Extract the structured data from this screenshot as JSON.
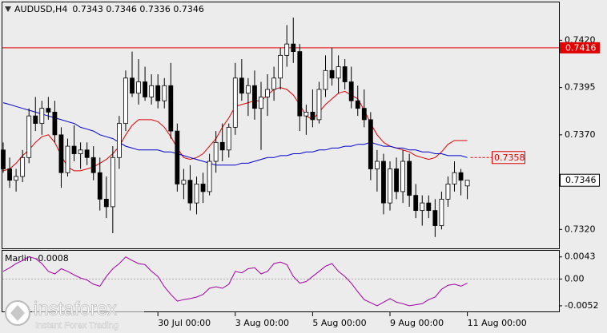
{
  "header": {
    "symbol": "AUDUSD,H4",
    "ohlc": [
      0.7343,
      0.7346,
      0.7336,
      0.7346
    ]
  },
  "watermark": {
    "brand": "instaforex",
    "tagline": "Instant Forex Trading"
  },
  "chart_data": [
    {
      "type": "candlestick",
      "categories": [
        null,
        null,
        null,
        null,
        null,
        null,
        null,
        null,
        null,
        null,
        null,
        null,
        null,
        null,
        null,
        null,
        null,
        null,
        null,
        null,
        null,
        null,
        null,
        null,
        "30 Jul 00:00",
        null,
        null,
        null,
        null,
        null,
        null,
        null,
        null,
        null,
        null,
        null,
        "3 Aug 00:00",
        null,
        null,
        null,
        null,
        null,
        null,
        null,
        null,
        null,
        null,
        null,
        "5 Aug 00:00",
        null,
        null,
        null,
        null,
        null,
        null,
        null,
        null,
        null,
        null,
        null,
        "9 Aug 00:00",
        null,
        null,
        null,
        null,
        null,
        null,
        null,
        null,
        null,
        null,
        null,
        "11 Aug 00:00"
      ],
      "open": [
        0.7362,
        0.7352,
        0.7346,
        0.7348,
        0.7358,
        0.738,
        0.7376,
        0.7384,
        0.7382,
        0.737,
        0.735,
        0.7364,
        0.736,
        0.7362,
        0.7358,
        0.735,
        0.7336,
        0.7332,
        0.7358,
        0.7376,
        0.74,
        0.7392,
        0.7398,
        0.739,
        0.7396,
        0.7388,
        0.7396,
        0.7372,
        0.7344,
        0.7346,
        0.7334,
        0.7344,
        0.734,
        0.7356,
        0.7366,
        0.7362,
        0.7374,
        0.74,
        0.7392,
        0.7396,
        0.7384,
        0.739,
        0.7394,
        0.74,
        0.7412,
        0.7418,
        0.7414,
        0.738,
        0.7382,
        0.7378,
        0.7394,
        0.7404,
        0.74,
        0.7406,
        0.7398,
        0.7388,
        0.7384,
        0.7378,
        0.7352,
        0.7356,
        0.7334,
        0.7352,
        0.734,
        0.7356,
        0.7338,
        0.733,
        0.7334,
        0.733,
        0.7322,
        0.7336,
        0.7344,
        0.735,
        0.7343
      ],
      "high": [
        0.7366,
        0.7358,
        0.7352,
        0.7362,
        0.7384,
        0.739,
        0.7388,
        0.739,
        0.7388,
        0.7374,
        0.7368,
        0.7375,
        0.7366,
        0.7366,
        0.7364,
        0.7358,
        0.7348,
        0.7364,
        0.738,
        0.7404,
        0.7414,
        0.741,
        0.7406,
        0.7402,
        0.7402,
        0.74,
        0.7408,
        0.7376,
        0.7352,
        0.7354,
        0.7348,
        0.735,
        0.736,
        0.7372,
        0.7376,
        0.7376,
        0.7408,
        0.741,
        0.74,
        0.7404,
        0.7398,
        0.7402,
        0.7406,
        0.7416,
        0.7428,
        0.7432,
        0.7418,
        0.7386,
        0.7394,
        0.7398,
        0.7412,
        0.7416,
        0.7412,
        0.741,
        0.7406,
        0.7396,
        0.7394,
        0.7382,
        0.7362,
        0.736,
        0.7356,
        0.7358,
        0.7362,
        0.736,
        0.7344,
        0.7338,
        0.7338,
        0.7336,
        0.734,
        0.7348,
        0.7356,
        0.7352,
        0.7346
      ],
      "low": [
        0.735,
        0.7342,
        0.734,
        0.7345,
        0.7355,
        0.7372,
        0.737,
        0.7378,
        0.7366,
        0.7342,
        0.7348,
        0.7356,
        0.7352,
        0.7354,
        0.7346,
        0.733,
        0.7326,
        0.7318,
        0.7352,
        0.7372,
        0.739,
        0.7386,
        0.7388,
        0.7386,
        0.7384,
        0.7384,
        0.7368,
        0.734,
        0.7336,
        0.733,
        0.7328,
        0.7334,
        0.7338,
        0.735,
        0.7356,
        0.7358,
        0.737,
        0.7388,
        0.738,
        0.7378,
        0.7362,
        0.738,
        0.7388,
        0.7394,
        0.7406,
        0.7408,
        0.7372,
        0.737,
        0.7374,
        0.7376,
        0.739,
        0.7396,
        0.7392,
        0.7394,
        0.7384,
        0.738,
        0.7374,
        0.7346,
        0.734,
        0.7328,
        0.733,
        0.7336,
        0.7334,
        0.7332,
        0.7326,
        0.7322,
        0.7326,
        0.7316,
        0.732,
        0.7332,
        0.734,
        0.7338,
        0.7336
      ],
      "close": [
        0.7352,
        0.7346,
        0.7348,
        0.7358,
        0.738,
        0.7376,
        0.7384,
        0.7382,
        0.737,
        0.735,
        0.7364,
        0.736,
        0.7362,
        0.7358,
        0.735,
        0.7336,
        0.7332,
        0.7358,
        0.7376,
        0.74,
        0.7392,
        0.7398,
        0.739,
        0.7396,
        0.7388,
        0.7396,
        0.7372,
        0.7344,
        0.7346,
        0.7334,
        0.7344,
        0.734,
        0.7356,
        0.7366,
        0.7362,
        0.7374,
        0.74,
        0.7392,
        0.7396,
        0.7384,
        0.739,
        0.7394,
        0.74,
        0.7412,
        0.7418,
        0.7414,
        0.738,
        0.7382,
        0.7378,
        0.7394,
        0.7404,
        0.74,
        0.7406,
        0.7398,
        0.7388,
        0.7384,
        0.7378,
        0.7352,
        0.7356,
        0.7334,
        0.7352,
        0.734,
        0.7356,
        0.7338,
        0.733,
        0.7334,
        0.733,
        0.7322,
        0.7336,
        0.7344,
        0.735,
        0.7346,
        0.7346
      ],
      "overlays": [
        {
          "color": "#e00000",
          "values": [
            0.7351,
            0.7352,
            0.7355,
            0.7359,
            0.7362,
            0.7366,
            0.7369,
            0.737,
            0.7366,
            0.7359,
            0.7353,
            0.7351,
            0.7351,
            0.7352,
            0.7353,
            0.7355,
            0.7357,
            0.736,
            0.7364,
            0.737,
            0.7375,
            0.7378,
            0.7378,
            0.7378,
            0.7377,
            0.7374,
            0.7369,
            0.7363,
            0.7358,
            0.7357,
            0.7358,
            0.736,
            0.7364,
            0.7368,
            0.7374,
            0.7379,
            0.7385,
            0.7386,
            0.7387,
            0.7388,
            0.7388,
            0.7391,
            0.7394,
            0.7395,
            0.7394,
            0.7391,
            0.7386,
            0.738,
            0.7378,
            0.7382,
            0.7386,
            0.7389,
            0.7392,
            0.7393,
            0.7391,
            0.7389,
            0.7383,
            0.7376,
            0.737,
            0.7366,
            0.7364,
            0.7363,
            0.7362,
            0.7361,
            0.7359,
            0.7358,
            0.7357,
            0.7358,
            0.7361,
            0.7365,
            0.7367,
            0.7367,
            0.7367
          ]
        },
        {
          "color": "#0000cc",
          "values": [
            0.7387,
            0.7386,
            0.7385,
            0.7384,
            0.7383,
            0.7382,
            0.7381,
            0.738,
            0.7379,
            0.7378,
            0.7377,
            0.7376,
            0.7374,
            0.7373,
            0.7372,
            0.737,
            0.7369,
            0.7368,
            0.7366,
            0.7364,
            0.7363,
            0.7362,
            0.7362,
            0.7362,
            0.7362,
            0.7361,
            0.7361,
            0.736,
            0.7359,
            0.7358,
            0.7357,
            0.7356,
            0.7355,
            0.7354,
            0.7354,
            0.7354,
            0.7354,
            0.7355,
            0.7355,
            0.7356,
            0.7357,
            0.7358,
            0.7358,
            0.7359,
            0.7359,
            0.736,
            0.736,
            0.7361,
            0.7361,
            0.7362,
            0.7362,
            0.7363,
            0.7363,
            0.7364,
            0.7364,
            0.7365,
            0.7365,
            0.7366,
            0.7365,
            0.7364,
            0.7364,
            0.7363,
            0.7363,
            0.7362,
            0.7362,
            0.7361,
            0.7361,
            0.736,
            0.736,
            0.7359,
            0.7359,
            0.7359,
            0.7358
          ]
        }
      ],
      "level": {
        "value": 0.7416,
        "color": "#e00000"
      },
      "last_price": 0.7346,
      "ma_label": 0.7358,
      "ylim": [
        0.731,
        0.744
      ],
      "yticks": [
        {
          "value": 0.742,
          "label": "0.7420"
        },
        0.7395,
        {
          "value": 0.737,
          "label": "0.7370"
        },
        {
          "value": 0.732,
          "label": "0.7320"
        }
      ]
    },
    {
      "type": "line",
      "name": "Marlin",
      "value": -0.0008,
      "color": "#a000a0",
      "values": [
        0.0015,
        0.0022,
        0.003,
        0.0036,
        0.0043,
        0.004,
        0.003,
        0.0015,
        0.001,
        0.002,
        0.0015,
        0.0008,
        0.0002,
        -0.0002,
        -0.001,
        -0.0014,
        0.0005,
        0.002,
        0.003,
        0.0043,
        0.0036,
        0.003,
        0.0028,
        0.0015,
        0.0005,
        -0.0015,
        -0.003,
        -0.0043,
        -0.004,
        -0.0038,
        -0.0035,
        -0.003,
        -0.0018,
        -0.0015,
        -0.0018,
        -0.001,
        0.0015,
        0.0012,
        0.002,
        0.0022,
        0.001,
        0.0015,
        0.003,
        0.0033,
        0.0028,
        0.0005,
        -0.0008,
        -0.0005,
        0.0005,
        0.0015,
        0.0025,
        0.003,
        0.0015,
        0.0005,
        -0.0008,
        -0.0025,
        -0.004,
        -0.0046,
        -0.0052,
        -0.0045,
        -0.0038,
        -0.0045,
        -0.0048,
        -0.0052,
        -0.005,
        -0.0048,
        -0.004,
        -0.0035,
        -0.002,
        -0.0012,
        -0.001,
        -0.0014,
        -0.0008
      ],
      "ylim": [
        -0.0063,
        0.0055
      ],
      "yticks": [
        0.0043,
        {
          "value": 0,
          "label": "0.00"
        },
        -0.0052
      ]
    }
  ]
}
